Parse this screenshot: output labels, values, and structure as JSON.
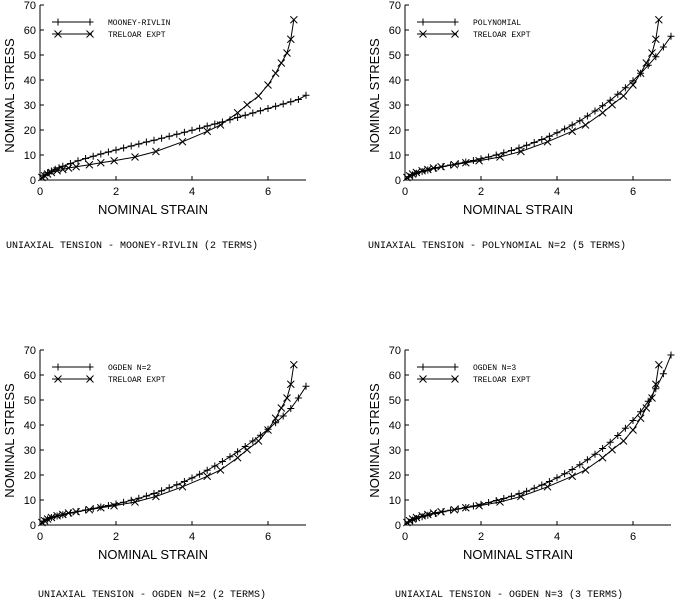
{
  "chart_data": [
    {
      "type": "line",
      "caption": "UNIAXIAL TENSION - MOONEY-RIVLIN (2 TERMS)",
      "xlabel": "NOMINAL STRAIN",
      "ylabel": "NOMINAL STRESS",
      "xlim": [
        0,
        7
      ],
      "ylim": [
        0,
        70
      ],
      "xticks": [
        0,
        2,
        4,
        6
      ],
      "yticks": [
        0,
        10,
        20,
        30,
        40,
        50,
        60,
        70
      ],
      "legend_position": "top-left",
      "series": [
        {
          "name": "MOONEY-RIVLIN",
          "marker": "plus",
          "x": [
            0,
            0.1,
            0.2,
            0.3,
            0.4,
            0.5,
            0.6,
            0.8,
            1.0,
            1.2,
            1.4,
            1.6,
            1.8,
            2.0,
            2.2,
            2.4,
            2.6,
            2.8,
            3.0,
            3.2,
            3.4,
            3.6,
            3.8,
            4.0,
            4.2,
            4.4,
            4.6,
            4.8,
            5.0,
            5.2,
            5.4,
            5.6,
            5.8,
            6.0,
            6.2,
            6.4,
            6.6,
            6.8,
            7.0
          ],
          "y": [
            0,
            1.9,
            2.9,
            3.6,
            4.3,
            4.9,
            5.5,
            6.6,
            7.7,
            8.6,
            9.5,
            10.4,
            11.2,
            12.0,
            12.8,
            13.6,
            14.4,
            15.2,
            15.9,
            16.7,
            17.5,
            18.3,
            19.1,
            19.9,
            20.7,
            21.6,
            22.4,
            23.2,
            24.1,
            25.0,
            25.9,
            26.8,
            27.7,
            28.6,
            29.5,
            30.4,
            31.3,
            32.2,
            33.9
          ]
        },
        {
          "name": "TRELOAR EXPT",
          "marker": "cross",
          "x": [
            0,
            0.05,
            0.12,
            0.2,
            0.3,
            0.45,
            0.6,
            0.75,
            0.95,
            1.3,
            1.6,
            1.95,
            2.5,
            3.05,
            3.75,
            4.4,
            4.75,
            5.2,
            5.45,
            5.75,
            6.0,
            6.2,
            6.35,
            6.5,
            6.6,
            6.68
          ],
          "y": [
            0,
            1.0,
            1.7,
            2.4,
            3.0,
            3.7,
            4.2,
            4.8,
            5.3,
            6.1,
            6.9,
            7.7,
            9.2,
            11.4,
            15.3,
            19.5,
            22.0,
            26.9,
            30.1,
            33.6,
            38.0,
            42.7,
            46.8,
            50.8,
            56.3,
            64.1
          ]
        }
      ]
    },
    {
      "type": "line",
      "caption": "UNIAXIAL TENSION - POLYNOMIAL N=2 (5 TERMS)",
      "xlabel": "NOMINAL STRAIN",
      "ylabel": "NOMINAL STRESS",
      "xlim": [
        0,
        7
      ],
      "ylim": [
        0,
        70
      ],
      "xticks": [
        0,
        2,
        4,
        6
      ],
      "yticks": [
        0,
        10,
        20,
        30,
        40,
        50,
        60,
        70
      ],
      "legend_position": "top-left",
      "series": [
        {
          "name": "POLYNOMIAL",
          "marker": "plus",
          "x": [
            0,
            0.1,
            0.2,
            0.3,
            0.45,
            0.6,
            0.8,
            1.0,
            1.2,
            1.4,
            1.6,
            1.8,
            2.0,
            2.2,
            2.4,
            2.6,
            2.8,
            3.0,
            3.2,
            3.4,
            3.6,
            3.8,
            4.0,
            4.2,
            4.4,
            4.6,
            4.8,
            5.0,
            5.2,
            5.4,
            5.6,
            5.8,
            6.0,
            6.2,
            6.4,
            6.6,
            6.8,
            7.0
          ],
          "y": [
            0,
            1.3,
            2.1,
            2.7,
            3.4,
            4.0,
            4.7,
            5.4,
            6.0,
            6.6,
            7.2,
            7.8,
            8.5,
            9.2,
            10.0,
            10.9,
            11.8,
            12.8,
            13.9,
            15.0,
            16.2,
            17.5,
            18.9,
            20.4,
            22.0,
            23.7,
            25.6,
            27.6,
            29.7,
            31.9,
            34.3,
            36.9,
            39.7,
            42.7,
            45.9,
            49.3,
            53.2,
            57.5
          ]
        },
        {
          "name": "TRELOAR EXPT",
          "marker": "cross",
          "x": [
            0,
            0.05,
            0.12,
            0.2,
            0.3,
            0.45,
            0.6,
            0.75,
            0.95,
            1.3,
            1.6,
            1.95,
            2.5,
            3.05,
            3.75,
            4.4,
            4.75,
            5.2,
            5.45,
            5.75,
            6.0,
            6.2,
            6.35,
            6.5,
            6.6,
            6.68
          ],
          "y": [
            0,
            1.0,
            1.7,
            2.4,
            3.0,
            3.7,
            4.2,
            4.8,
            5.3,
            6.1,
            6.9,
            7.7,
            9.2,
            11.4,
            15.3,
            19.5,
            22.0,
            26.9,
            30.1,
            33.6,
            38.0,
            42.7,
            46.8,
            50.8,
            56.3,
            64.1
          ]
        }
      ]
    },
    {
      "type": "line",
      "caption": "UNIAXIAL TENSION - OGDEN N=2 (2 TERMS)",
      "xlabel": "NOMINAL STRAIN",
      "ylabel": "NOMINAL STRESS",
      "xlim": [
        0,
        7
      ],
      "ylim": [
        0,
        70
      ],
      "xticks": [
        0,
        2,
        4,
        6
      ],
      "yticks": [
        0,
        10,
        20,
        30,
        40,
        50,
        60,
        70
      ],
      "legend_position": "top-left",
      "series": [
        {
          "name": "OGDEN N=2",
          "marker": "plus",
          "x": [
            0,
            0.1,
            0.2,
            0.3,
            0.45,
            0.6,
            0.8,
            1.0,
            1.2,
            1.4,
            1.6,
            1.8,
            2.0,
            2.2,
            2.4,
            2.6,
            2.8,
            3.0,
            3.2,
            3.4,
            3.6,
            3.8,
            4.0,
            4.2,
            4.4,
            4.6,
            4.8,
            5.0,
            5.2,
            5.4,
            5.6,
            5.8,
            6.0,
            6.2,
            6.4,
            6.6,
            6.8,
            7.0
          ],
          "y": [
            0,
            1.6,
            2.4,
            3.0,
            3.6,
            4.1,
            4.8,
            5.4,
            6.0,
            6.6,
            7.2,
            7.8,
            8.4,
            9.1,
            9.9,
            10.7,
            11.6,
            12.6,
            13.7,
            14.9,
            16.1,
            17.4,
            18.8,
            20.3,
            21.9,
            23.6,
            25.4,
            27.3,
            29.3,
            31.4,
            33.6,
            35.9,
            38.3,
            40.9,
            43.6,
            46.6,
            50.8,
            55.5
          ]
        },
        {
          "name": "TRELOAR EXPT",
          "marker": "cross",
          "x": [
            0,
            0.05,
            0.12,
            0.2,
            0.3,
            0.45,
            0.6,
            0.75,
            0.95,
            1.3,
            1.6,
            1.95,
            2.5,
            3.05,
            3.75,
            4.4,
            4.75,
            5.2,
            5.45,
            5.75,
            6.0,
            6.2,
            6.35,
            6.5,
            6.6,
            6.68
          ],
          "y": [
            0,
            1.0,
            1.7,
            2.4,
            3.0,
            3.7,
            4.2,
            4.8,
            5.3,
            6.1,
            6.9,
            7.7,
            9.2,
            11.4,
            15.3,
            19.5,
            22.0,
            26.9,
            30.1,
            33.6,
            38.0,
            42.7,
            46.8,
            50.8,
            56.3,
            64.1
          ]
        }
      ]
    },
    {
      "type": "line",
      "caption": "UNIAXIAL TENSION - OGDEN N=3 (3 TERMS)",
      "xlabel": "NOMINAL STRAIN",
      "ylabel": "NOMINAL STRESS",
      "xlim": [
        0,
        7
      ],
      "ylim": [
        0,
        70
      ],
      "xticks": [
        0,
        2,
        4,
        6
      ],
      "yticks": [
        0,
        10,
        20,
        30,
        40,
        50,
        60,
        70
      ],
      "legend_position": "top-left",
      "series": [
        {
          "name": "OGDEN N=3",
          "marker": "plus",
          "x": [
            0,
            0.1,
            0.2,
            0.3,
            0.45,
            0.6,
            0.8,
            1.0,
            1.2,
            1.4,
            1.6,
            1.8,
            2.0,
            2.2,
            2.4,
            2.6,
            2.8,
            3.0,
            3.2,
            3.4,
            3.6,
            3.8,
            4.0,
            4.2,
            4.4,
            4.6,
            4.8,
            5.0,
            5.2,
            5.4,
            5.6,
            5.8,
            6.0,
            6.2,
            6.4,
            6.6,
            6.8,
            7.0
          ],
          "y": [
            0,
            1.2,
            2.0,
            2.6,
            3.3,
            3.9,
            4.6,
            5.3,
            5.9,
            6.5,
            7.0,
            7.6,
            8.3,
            9.0,
            9.8,
            10.6,
            11.5,
            12.5,
            13.5,
            14.7,
            16.0,
            17.4,
            18.9,
            20.5,
            22.2,
            24.1,
            26.1,
            28.3,
            30.6,
            33.1,
            35.8,
            38.7,
            41.8,
            45.3,
            49.5,
            54.5,
            60.5,
            68.0
          ]
        },
        {
          "name": "TRELOAR EXPT",
          "marker": "cross",
          "x": [
            0,
            0.05,
            0.12,
            0.2,
            0.3,
            0.45,
            0.6,
            0.75,
            0.95,
            1.3,
            1.6,
            1.95,
            2.5,
            3.05,
            3.75,
            4.4,
            4.75,
            5.2,
            5.45,
            5.75,
            6.0,
            6.2,
            6.35,
            6.5,
            6.6,
            6.68
          ],
          "y": [
            0,
            1.0,
            1.7,
            2.4,
            3.0,
            3.7,
            4.2,
            4.8,
            5.3,
            6.1,
            6.9,
            7.7,
            9.2,
            11.4,
            15.3,
            19.5,
            22.0,
            26.9,
            30.1,
            33.6,
            38.0,
            42.7,
            46.8,
            50.8,
            56.3,
            64.1
          ]
        }
      ]
    }
  ]
}
